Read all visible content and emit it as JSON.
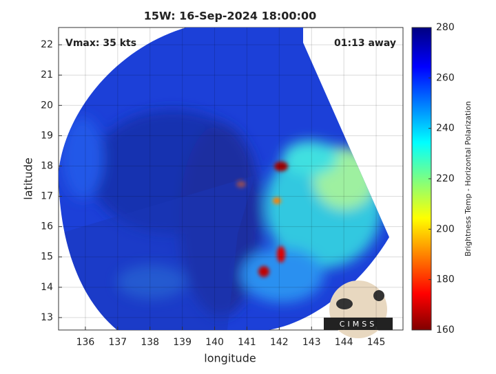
{
  "chart_data": {
    "type": "image",
    "title": "15W: 16-Sep-2024 18:00:00",
    "x_label": "longitude",
    "y_label": "latitude",
    "xlim": [
      135.17,
      145.83
    ],
    "xticks": [
      136,
      137,
      138,
      139,
      140,
      141,
      142,
      143,
      144,
      145
    ],
    "ylim": [
      12.59,
      22.57
    ],
    "yticks": [
      13,
      14,
      15,
      16,
      17,
      18,
      19,
      20,
      21,
      22
    ],
    "grid": true,
    "annotations": [
      "Vmax: 35 kts",
      "01:13 away"
    ],
    "colorbar": {
      "label": "Brightness Temp - Horizontal Polarization",
      "lim": [
        160,
        280
      ],
      "ticks": [
        160,
        180,
        200,
        220,
        240,
        260,
        280
      ],
      "colormap": "jet"
    },
    "logo": "CIMSS"
  }
}
